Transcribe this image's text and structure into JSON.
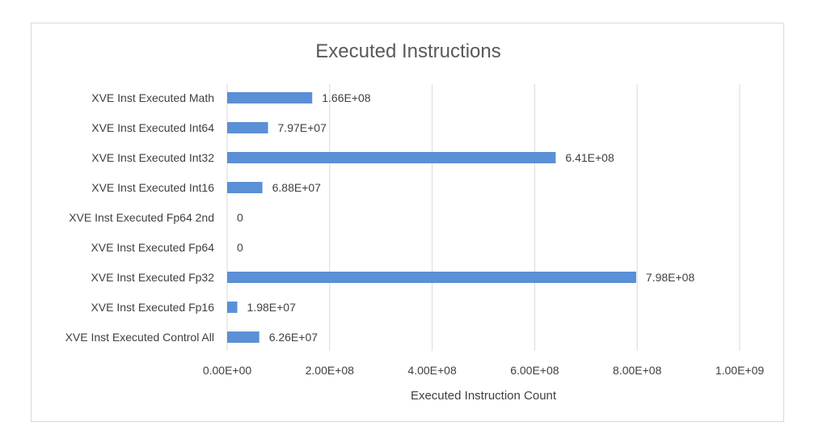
{
  "chart_data": {
    "type": "bar",
    "orientation": "horizontal",
    "title": "Executed Instructions",
    "xlabel": "Executed  Instruction Count",
    "ylabel": "",
    "categories": [
      "XVE Inst Executed Math",
      "XVE Inst Executed Int64",
      "XVE Inst Executed Int32",
      "XVE Inst Executed Int16",
      "XVE Inst Executed Fp64 2nd",
      "XVE Inst Executed Fp64",
      "XVE Inst Executed Fp32",
      "XVE Inst Executed Fp16",
      "XVE Inst Executed Control All"
    ],
    "values": [
      166000000,
      79700000,
      641000000,
      68800000,
      0,
      0,
      798000000,
      19800000,
      62600000
    ],
    "data_labels": [
      "1.66E+08",
      "7.97E+07",
      "6.41E+08",
      "6.88E+07",
      "0",
      "0",
      "7.98E+08",
      "1.98E+07",
      "6.26E+07"
    ],
    "xlim": [
      0,
      1000000000
    ],
    "x_ticks": [
      0,
      200000000,
      400000000,
      600000000,
      800000000,
      1000000000
    ],
    "x_tick_labels": [
      "0.00E+00",
      "2.00E+08",
      "4.00E+08",
      "6.00E+08",
      "8.00E+08",
      "1.00E+09"
    ],
    "grid": "vertical",
    "legend": "none",
    "bar_color": "#5b8fd6",
    "grid_color": "#d9d9d9"
  }
}
